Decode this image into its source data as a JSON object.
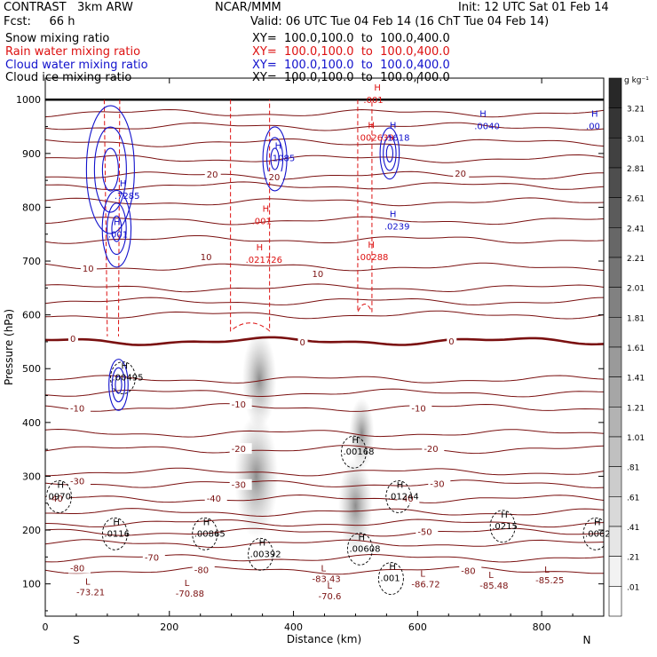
{
  "header": {
    "model": "CONTRAST   3km ARW",
    "center": "NCAR/MMM",
    "init": "Init: 12 UTC Sat 01 Feb 14",
    "fcst": "Fcst:     66 h",
    "valid": "Valid: 06 UTC Tue 04 Feb 14 (16 ChT Tue 04 Feb 14)"
  },
  "fields": [
    {
      "name": "Snow mixing ratio",
      "xy": "XY=  100.0,100.0  to  100.0,400.0",
      "color": "#000000"
    },
    {
      "name": "Rain water mixing ratio",
      "xy": "XY=  100.0,100.0  to  100.0,400.0",
      "color": "#dd1111"
    },
    {
      "name": "Cloud water mixing ratio",
      "xy": "XY=  100.0,100.0  to  100.0,400.0",
      "color": "#1111cc"
    },
    {
      "name": "Cloud ice mixing ratio",
      "xy": "XY=  100.0,100.0  to  100.0,400.0",
      "color": "#000000"
    }
  ],
  "chart_data": {
    "type": "heatmap",
    "xlabel": "Distance (km)",
    "ylabel": "Pressure (hPa)",
    "xlim": [
      0,
      900
    ],
    "ylim": [
      1040,
      40
    ],
    "xticks": [
      0,
      200,
      400,
      600,
      800
    ],
    "yticks": [
      100,
      200,
      300,
      400,
      500,
      600,
      700,
      800,
      900,
      1000
    ],
    "end_labels": {
      "left": "S",
      "right": "N"
    },
    "colorbar": {
      "unit": "g kg⁻¹",
      "levels": [
        "3.21",
        "3.01",
        "2.81",
        "2.61",
        "2.41",
        "2.21",
        "2.01",
        "1.81",
        "1.61",
        "1.41",
        "1.21",
        "1.01",
        ".81",
        ".61",
        ".41",
        ".21",
        ".01"
      ]
    },
    "temperature_contours": [
      {
        "label": "-80",
        "p": 128,
        "xlabel": 40
      },
      {
        "label": "-80",
        "p": 125,
        "xlabel": 240
      },
      {
        "label": "-80",
        "p": 123,
        "xlabel": 670
      },
      {
        "label": "-70",
        "p": 148,
        "xlabel": 160
      },
      {
        "label": "-50",
        "p": 196,
        "xlabel": 600
      },
      {
        "label": "-40",
        "p": 258,
        "xlabel": 5
      },
      {
        "label": "-40",
        "p": 258,
        "xlabel": 260
      },
      {
        "label": "-40",
        "p": 258,
        "xlabel": 570
      },
      {
        "label": "-30",
        "p": 290,
        "xlabel": 40
      },
      {
        "label": "-30",
        "p": 283,
        "xlabel": 300
      },
      {
        "label": "-30",
        "p": 285,
        "xlabel": 620
      },
      {
        "label": "-20",
        "p": 350,
        "xlabel": 300
      },
      {
        "label": "-20",
        "p": 350,
        "xlabel": 610
      },
      {
        "label": "-10",
        "p": 425,
        "xlabel": 40
      },
      {
        "label": "-10",
        "p": 433,
        "xlabel": 300
      },
      {
        "label": "-10",
        "p": 425,
        "xlabel": 590
      },
      {
        "label": "0",
        "p": 555,
        "xlabel": 40,
        "bold": true
      },
      {
        "label": "0",
        "p": 548,
        "xlabel": 410,
        "bold": true
      },
      {
        "label": "0",
        "p": 550,
        "xlabel": 650,
        "bold": true
      },
      {
        "label": "10",
        "p": 685,
        "xlabel": 60
      },
      {
        "label": "10",
        "p": 707,
        "xlabel": 250
      },
      {
        "label": "10",
        "p": 675,
        "xlabel": 430
      },
      {
        "label": "20",
        "p": 860,
        "xlabel": 260
      },
      {
        "label": "20",
        "p": 855,
        "xlabel": 360
      },
      {
        "label": "20",
        "p": 862,
        "xlabel": 660
      }
    ],
    "temperature_extrema": [
      {
        "label": "-73.21",
        "p": 85,
        "x": 50,
        "kind": "L"
      },
      {
        "label": "-70.88",
        "p": 83,
        "x": 210,
        "kind": "L"
      },
      {
        "label": "-70.6",
        "p": 78,
        "x": 440,
        "kind": "L"
      },
      {
        "label": "-83.43",
        "p": 110,
        "x": 430,
        "kind": "L"
      },
      {
        "label": "-86.72",
        "p": 100,
        "x": 590,
        "kind": "L"
      },
      {
        "label": "-85.48",
        "p": 98,
        "x": 700,
        "kind": "L"
      },
      {
        "label": "-85.25",
        "p": 108,
        "x": 790,
        "kind": "L"
      }
    ],
    "snow_maxima": [
      {
        "label": ".0116",
        "p": 193,
        "x": 95
      },
      {
        "label": ".00865",
        "p": 193,
        "x": 240
      },
      {
        "label": ".00392",
        "p": 155,
        "x": 330
      },
      {
        "label": ".001",
        "p": 110,
        "x": 540
      },
      {
        "label": ".00608",
        "p": 165,
        "x": 490
      },
      {
        "label": ".01244",
        "p": 262,
        "x": 552
      },
      {
        "label": ".00168",
        "p": 345,
        "x": 480
      },
      {
        "label": ".0215",
        "p": 207,
        "x": 720
      },
      {
        "label": ".0062",
        "p": 193,
        "x": 870
      },
      {
        "label": "0970",
        "p": 262,
        "x": 5
      },
      {
        "label": ".00495",
        "p": 483,
        "x": 108
      }
    ],
    "rain_maxima": [
      {
        "label": ".021726",
        "p": 703,
        "x": 340
      },
      {
        "label": ".001",
        "p": 775,
        "x": 350
      },
      {
        "label": ".00288",
        "p": 708,
        "x": 520
      },
      {
        "label": ".002639",
        "p": 930,
        "x": 520
      },
      {
        "label": ".001",
        "p": 1000,
        "x": 530
      }
    ],
    "cloud_water_maxima": [
      {
        "label": ".001",
        "p": 750,
        "x": 110
      },
      {
        "label": ".7285",
        "p": 822,
        "x": 120
      },
      {
        "label": ".1085",
        "p": 892,
        "x": 370
      },
      {
        "label": ".0239",
        "p": 765,
        "x": 555
      },
      {
        "label": ".1618",
        "p": 930,
        "x": 555
      },
      {
        "label": ".0040",
        "p": 952,
        "x": 700
      },
      {
        "label": ".00",
        "p": 952,
        "x": 880
      }
    ]
  }
}
